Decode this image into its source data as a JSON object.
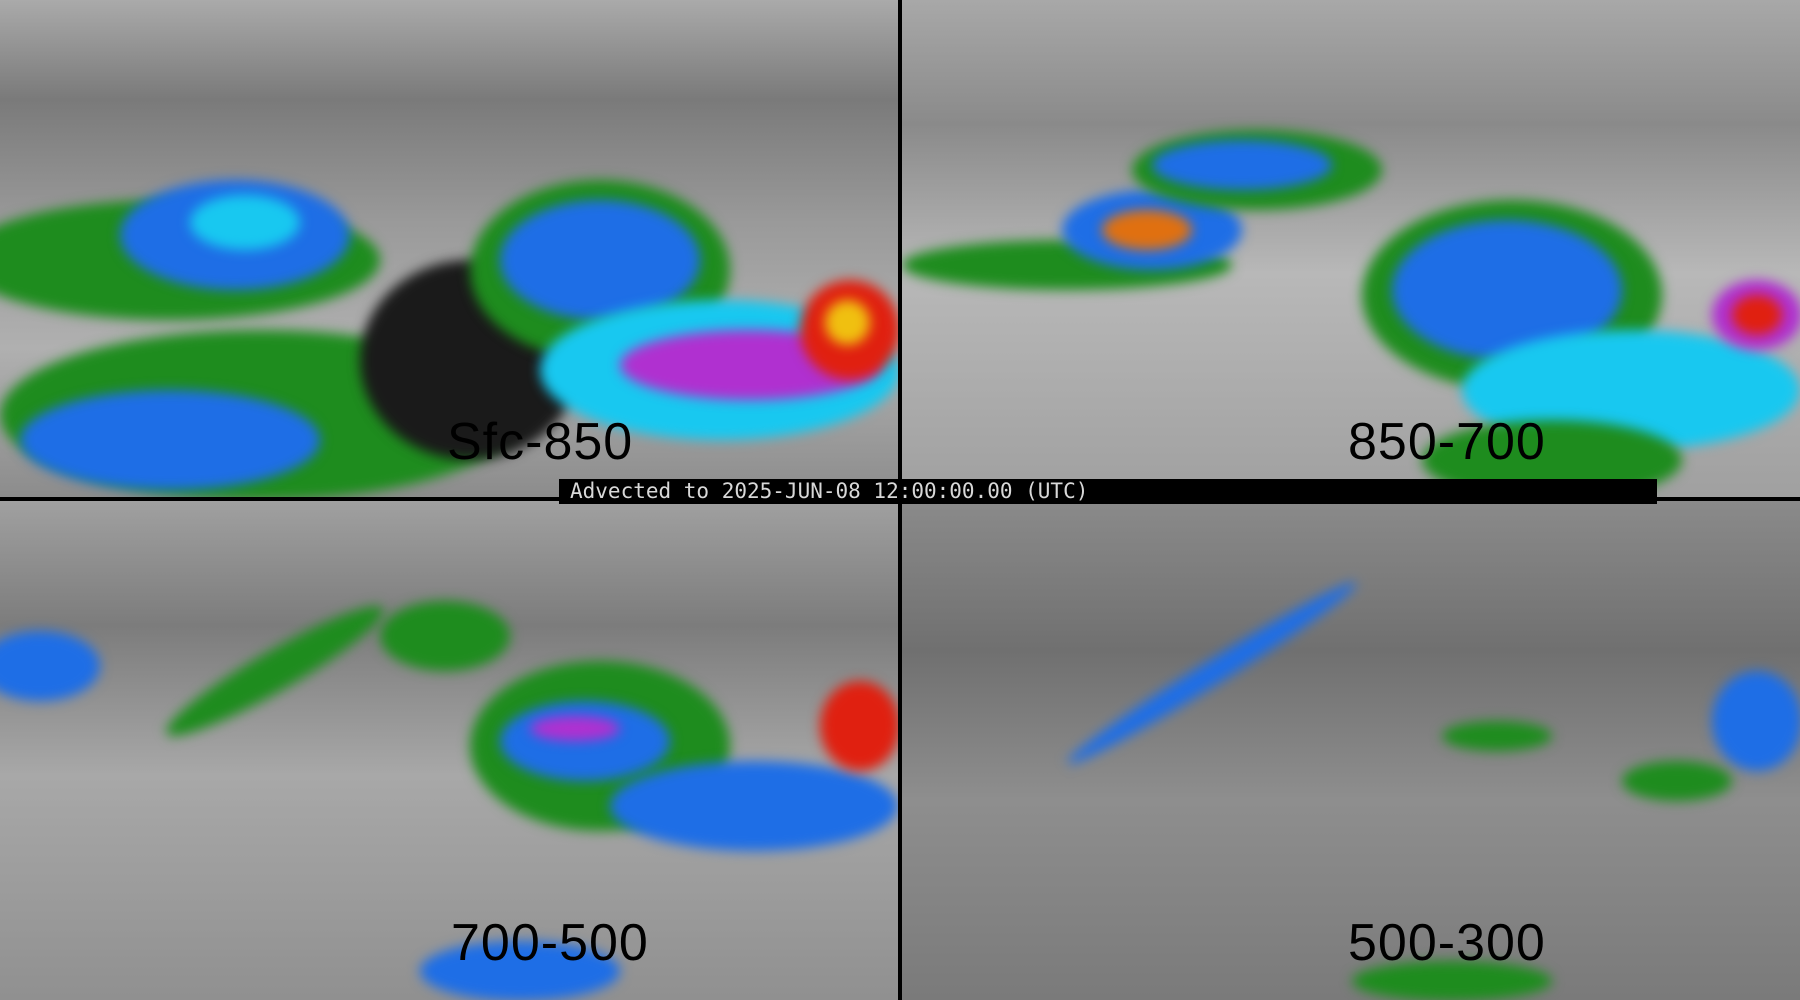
{
  "panels": [
    {
      "label": "Sfc-850"
    },
    {
      "label": "850-700"
    },
    {
      "label": "700-500"
    },
    {
      "label": "500-300"
    }
  ],
  "banner": {
    "text": "Advected to 2025-JUN-08 12:00:00.00 (UTC)"
  },
  "colors": {
    "background_gray": "#8a8a8a",
    "green": "#1e8c1e",
    "blue": "#1e6ee6",
    "cyan": "#18c8f0",
    "purple": "#b030d0",
    "red": "#e02010",
    "orange": "#f08010"
  }
}
